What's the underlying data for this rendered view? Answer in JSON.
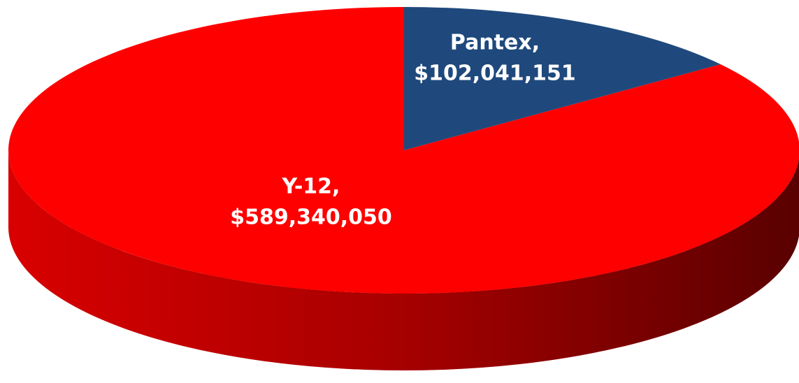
{
  "chart_data": {
    "type": "pie",
    "categories": [
      "Pantex,",
      "Y-12,"
    ],
    "values": [
      102041151,
      589340050
    ],
    "value_labels": [
      "$102,041,151",
      "$589,340,050"
    ],
    "colors": [
      "#1f497d",
      "#ff0000"
    ]
  }
}
